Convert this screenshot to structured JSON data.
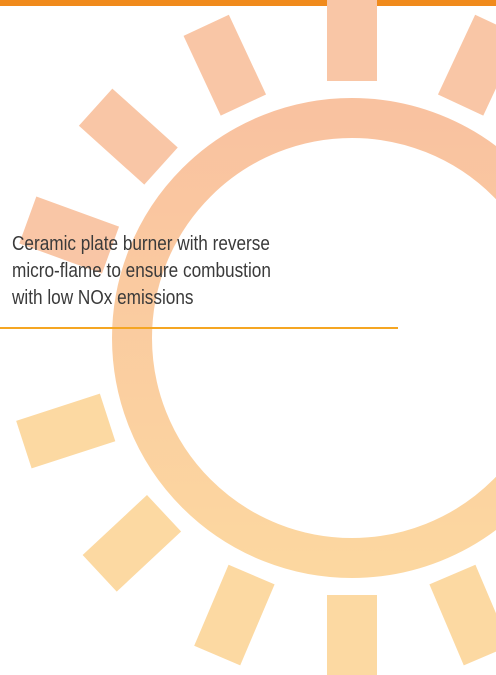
{
  "caption": {
    "lines": [
      "Ceramic plate burner with reverse",
      "micro-flame to ensure combustion",
      "with low NOx emissions"
    ]
  }
}
